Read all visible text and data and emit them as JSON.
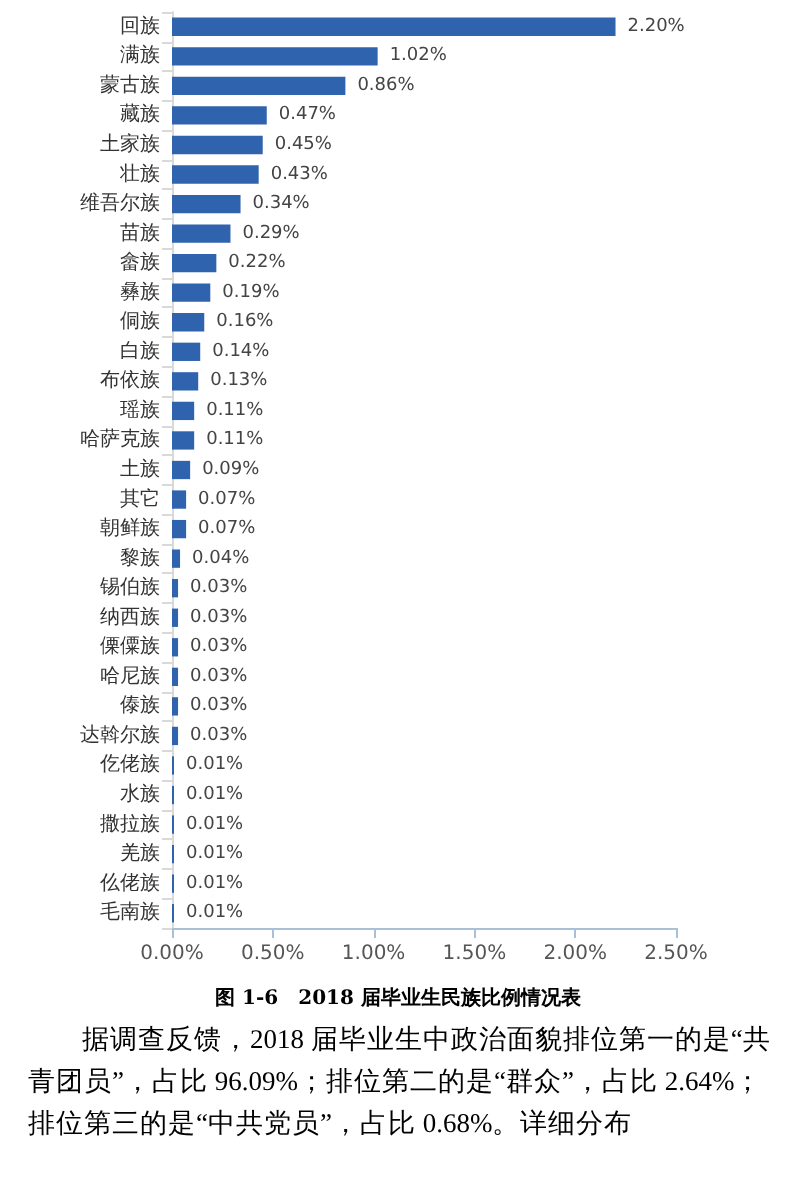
{
  "chart_data": {
    "type": "bar",
    "orientation": "horizontal",
    "title": "图 1-6　2018 届毕业生民族比例情况表",
    "categories": [
      "回族",
      "满族",
      "蒙古族",
      "藏族",
      "土家族",
      "壮族",
      "维吾尔族",
      "苗族",
      "畲族",
      "彝族",
      "侗族",
      "白族",
      "布依族",
      "瑶族",
      "哈萨克族",
      "土族",
      "其它",
      "朝鲜族",
      "黎族",
      "锡伯族",
      "纳西族",
      "傈僳族",
      "哈尼族",
      "傣族",
      "达斡尔族",
      "仡佬族",
      "水族",
      "撒拉族",
      "羌族",
      "仫佬族",
      "毛南族"
    ],
    "values": [
      2.2,
      1.02,
      0.86,
      0.47,
      0.45,
      0.43,
      0.34,
      0.29,
      0.22,
      0.19,
      0.16,
      0.14,
      0.13,
      0.11,
      0.11,
      0.09,
      0.07,
      0.07,
      0.04,
      0.03,
      0.03,
      0.03,
      0.03,
      0.03,
      0.03,
      0.01,
      0.01,
      0.01,
      0.01,
      0.01,
      0.01
    ],
    "value_labels": [
      "2.20%",
      "1.02%",
      "0.86%",
      "0.47%",
      "0.45%",
      "0.43%",
      "0.34%",
      "0.29%",
      "0.22%",
      "0.19%",
      "0.16%",
      "0.14%",
      "0.13%",
      "0.11%",
      "0.11%",
      "0.09%",
      "0.07%",
      "0.07%",
      "0.04%",
      "0.03%",
      "0.03%",
      "0.03%",
      "0.03%",
      "0.03%",
      "0.03%",
      "0.01%",
      "0.01%",
      "0.01%",
      "0.01%",
      "0.01%",
      "0.01%"
    ],
    "color": "#2f63ad",
    "xlim": [
      0,
      2.5
    ],
    "xticks": [
      {
        "value": 0,
        "label": "0.00%"
      },
      {
        "value": 0.5,
        "label": "0.50%"
      },
      {
        "value": 1,
        "label": "1.00%"
      },
      {
        "value": 1.5,
        "label": "1.50%"
      },
      {
        "value": 2,
        "label": "2.00%"
      },
      {
        "value": 2.5,
        "label": "2.50%"
      }
    ],
    "grid": false,
    "annotations": [
      "据调查反馈，2018 届毕业生中政治面貌排位第一的是“共青团员”，占比 96.09%；排位第二的是“群众”，占比 2.64%；排位第三的是“中共党员”，占比 0.68%。详细分布"
    ]
  }
}
